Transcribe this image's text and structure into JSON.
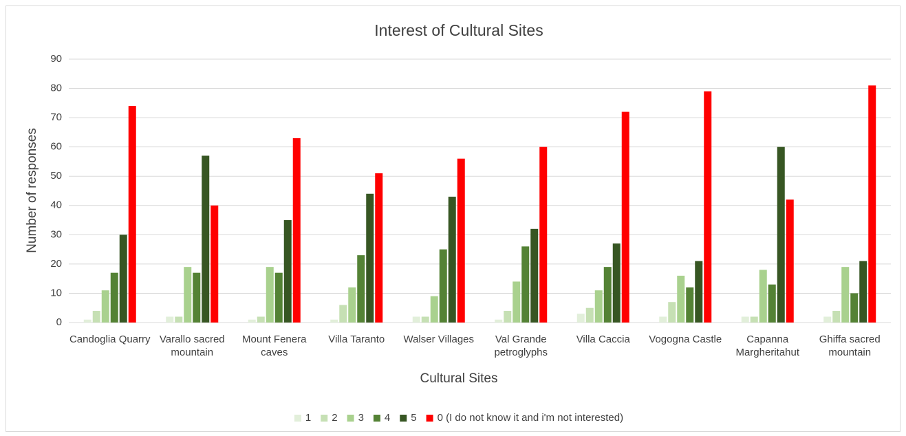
{
  "chart_data": {
    "type": "bar",
    "title": "Interest of Cultural Sites",
    "x_label": "Cultural Sites",
    "y_label": "Number of responses",
    "categories": [
      "Candoglia Quarry",
      "Varallo sacred mountain",
      "Mount Fenera caves",
      "Villa Taranto",
      "Walser Villages",
      "Val Grande petroglyphs",
      "Villa Caccia",
      "Vogogna Castle",
      "Capanna Margheritahut",
      "Ghiffa sacred mountain"
    ],
    "series": [
      {
        "name": "1",
        "color": "#e2efda",
        "values": [
          1,
          2,
          1,
          1,
          2,
          1,
          3,
          2,
          2,
          2
        ]
      },
      {
        "name": "2",
        "color": "#c6e0b4",
        "values": [
          4,
          2,
          2,
          6,
          2,
          4,
          5,
          7,
          2,
          4
        ]
      },
      {
        "name": "3",
        "color": "#a9d18e",
        "values": [
          11,
          19,
          19,
          12,
          9,
          14,
          11,
          16,
          18,
          19
        ]
      },
      {
        "name": "4",
        "color": "#548235",
        "values": [
          17,
          17,
          17,
          23,
          25,
          26,
          19,
          12,
          13,
          10
        ]
      },
      {
        "name": "5",
        "color": "#375623",
        "values": [
          30,
          57,
          35,
          44,
          43,
          32,
          27,
          21,
          60,
          21
        ]
      },
      {
        "name": "0 (I do not know it and i'm not interested)",
        "color": "#ff0000",
        "values": [
          74,
          40,
          63,
          51,
          56,
          60,
          72,
          79,
          42,
          81
        ]
      }
    ],
    "ylim": [
      0,
      90
    ],
    "yticks": [
      0,
      10,
      20,
      30,
      40,
      50,
      60,
      70,
      80,
      90
    ],
    "grid": true,
    "legend": "bottom"
  }
}
